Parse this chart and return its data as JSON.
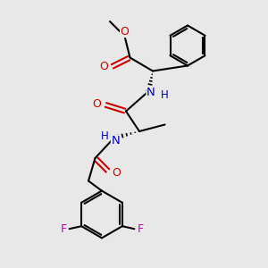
{
  "background_color": "#e8e8e8",
  "bond_color": "#000000",
  "atom_colors": {
    "O": "#cc0000",
    "N": "#0000bb",
    "F": "#bb00bb",
    "C": "#000000",
    "H": "#000000"
  },
  "figsize": [
    3.0,
    3.0
  ],
  "dpi": 100
}
